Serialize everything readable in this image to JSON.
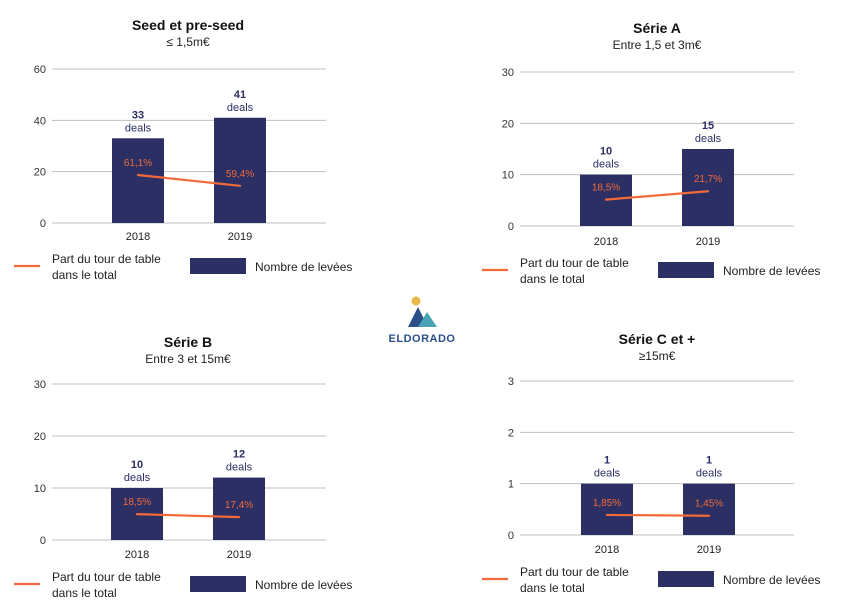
{
  "logo": {
    "text": "ELDORADO",
    "icon": "mountain-sun-logo-icon"
  },
  "colors": {
    "bar": "#2b2f63",
    "line": "#f26a3a",
    "grid": "#bfbfbf",
    "axis_text": "#333333",
    "logo_text": "#2b4f8a",
    "logo_sun": "#e8b84a",
    "logo_mountain_dark": "#2b4f8a",
    "logo_mountain_light": "#4aa3b5"
  },
  "legend": {
    "line_label": [
      "Part du tour de table",
      "dans le total"
    ],
    "bar_label": "Nombre de levées"
  },
  "chart_data": [
    {
      "type": "bar",
      "title": "Seed et pre-seed",
      "subtitle": "≤ 1,5m€",
      "categories": [
        "2018",
        "2019"
      ],
      "yticks": [
        "0",
        "20",
        "40",
        "60"
      ],
      "ylim": [
        0,
        60
      ],
      "grid": true,
      "series": [
        {
          "name": "Nombre de levées",
          "kind": "bar",
          "values": [
            33,
            41
          ],
          "labels": [
            "33",
            "41"
          ],
          "unit": "deals"
        },
        {
          "name": "Part du tour de table dans le total",
          "kind": "line",
          "values": [
            61.1,
            59.4
          ],
          "labels": [
            "61,1%",
            "59,4%"
          ]
        }
      ]
    },
    {
      "type": "bar",
      "title": "Série A",
      "subtitle": "Entre 1,5 et 3m€",
      "categories": [
        "2018",
        "2019"
      ],
      "yticks": [
        "0",
        "10",
        "20",
        "30"
      ],
      "ylim": [
        0,
        30
      ],
      "grid": true,
      "series": [
        {
          "name": "Nombre de levées",
          "kind": "bar",
          "values": [
            10,
            15
          ],
          "labels": [
            "10",
            "15"
          ],
          "unit": "deals"
        },
        {
          "name": "Part du tour de table dans le total",
          "kind": "line",
          "values": [
            18.5,
            21.7
          ],
          "labels": [
            "18,5%",
            "21,7%"
          ]
        }
      ]
    },
    {
      "type": "bar",
      "title": "Série B",
      "subtitle": "Entre 3 et 15m€",
      "categories": [
        "2018",
        "2019"
      ],
      "yticks": [
        "0",
        "10",
        "20",
        "30"
      ],
      "ylim": [
        0,
        30
      ],
      "grid": true,
      "series": [
        {
          "name": "Nombre de levées",
          "kind": "bar",
          "values": [
            10,
            12
          ],
          "labels": [
            "10",
            "12"
          ],
          "unit": "deals"
        },
        {
          "name": "Part du tour de table dans le total",
          "kind": "line",
          "values": [
            18.5,
            17.4
          ],
          "labels": [
            "18,5%",
            "17,4%"
          ]
        }
      ]
    },
    {
      "type": "bar",
      "title": "Série C et +",
      "subtitle": "≥15m€",
      "categories": [
        "2018",
        "2019"
      ],
      "yticks": [
        "0",
        "1",
        "2",
        "3"
      ],
      "ylim": [
        0,
        3
      ],
      "grid": true,
      "series": [
        {
          "name": "Nombre de levées",
          "kind": "bar",
          "values": [
            1,
            1
          ],
          "labels": [
            "1",
            "1"
          ],
          "unit": "deals"
        },
        {
          "name": "Part du tour de table dans le total",
          "kind": "line",
          "values": [
            1.85,
            1.45
          ],
          "labels": [
            "1,85%",
            "1,45%"
          ]
        }
      ]
    }
  ]
}
